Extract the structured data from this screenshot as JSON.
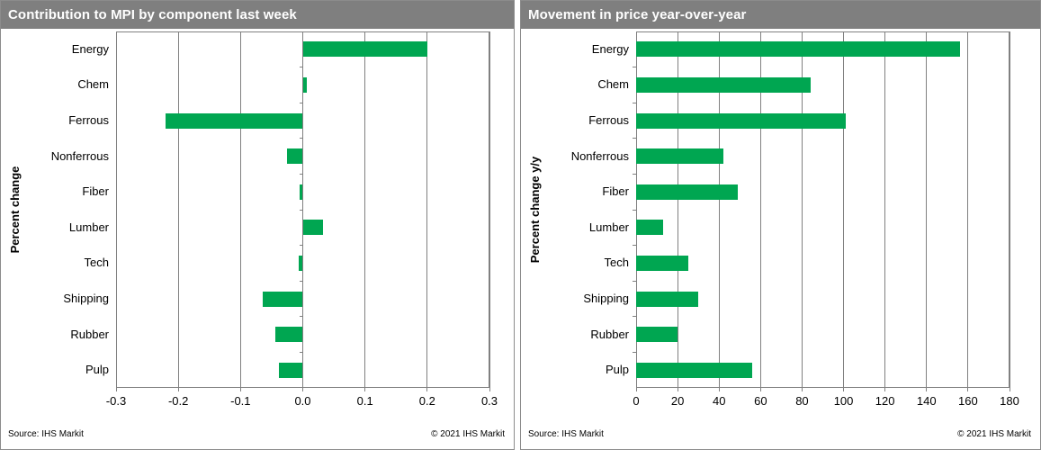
{
  "panels": [
    {
      "title": "Contribution to MPI by component last week",
      "source": "Source: IHS Markit",
      "copyright": "© 2021  IHS Markit"
    },
    {
      "title": "Movement in price year-over-year",
      "source": "Source: IHS Markit",
      "copyright": "© 2021  IHS Markit"
    }
  ],
  "colors": {
    "bar_green": "#00A651",
    "header_bg": "#7f7f7f",
    "header_text": "#ffffff",
    "gridline": "#808080",
    "text": "#000000"
  },
  "chart_data": [
    {
      "type": "bar",
      "orientation": "horizontal",
      "title": "Contribution to MPI by component last week",
      "ylabel": "Percent change",
      "xlabel": "",
      "categories": [
        "Energy",
        "Chem",
        "Ferrous",
        "Nonferrous",
        "Fiber",
        "Lumber",
        "Tech",
        "Shipping",
        "Rubber",
        "Pulp"
      ],
      "values": [
        0.2,
        0.007,
        -0.22,
        -0.025,
        -0.005,
        0.032,
        -0.006,
        -0.064,
        -0.044,
        -0.039
      ],
      "xlim": [
        -0.3,
        0.3
      ],
      "xticks": [
        -0.3,
        -0.2,
        -0.1,
        0.0,
        0.1,
        0.2,
        0.3
      ],
      "xtick_labels": [
        "-0.3",
        "-0.2",
        "-0.1",
        "0.0",
        "0.1",
        "0.2",
        "0.3"
      ],
      "grid": true,
      "legend": false
    },
    {
      "type": "bar",
      "orientation": "horizontal",
      "title": "Movement in price year-over-year",
      "ylabel": "Percent change y/y",
      "xlabel": "",
      "categories": [
        "Energy",
        "Chem",
        "Ferrous",
        "Nonferrous",
        "Fiber",
        "Lumber",
        "Tech",
        "Shipping",
        "Rubber",
        "Pulp"
      ],
      "values": [
        156,
        84,
        101,
        42,
        49,
        13,
        25,
        30,
        20,
        56
      ],
      "xlim": [
        0,
        180
      ],
      "xticks": [
        0,
        20,
        40,
        60,
        80,
        100,
        120,
        140,
        160,
        180
      ],
      "xtick_labels": [
        "0",
        "20",
        "40",
        "60",
        "80",
        "100",
        "120",
        "140",
        "160",
        "180"
      ],
      "grid": true,
      "legend": false
    }
  ]
}
